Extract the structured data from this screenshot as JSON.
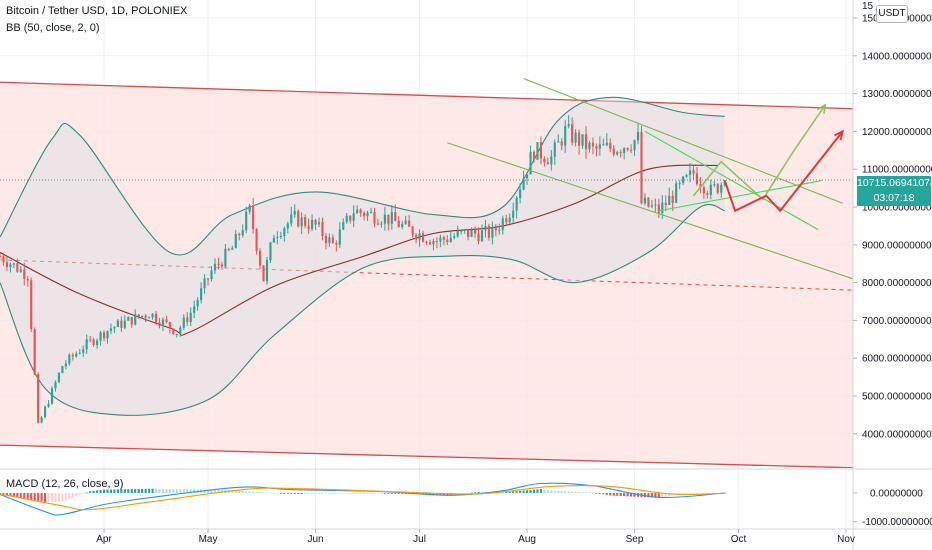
{
  "header": {
    "title": "Bitcoin / Tether USD, 1D, POLONIEX",
    "indicator": "BB (50, close, 2, 0)",
    "currency": "USDT"
  },
  "price_axis": {
    "ticks": [
      "15000.00000000",
      "14000.00000000",
      "13000.00000000",
      "12000.00000000",
      "11000.00000000",
      "10000.00000000",
      "9000.00000000",
      "8000.00000000",
      "7000.00000000",
      "6000.00000000",
      "5000.00000000",
      "4000.00000000"
    ],
    "top_partial": "15",
    "last_price": "10715.06941074",
    "countdown": "03:07:18"
  },
  "macd": {
    "label": "MACD (12, 26, close, 9)",
    "ticks": [
      "0.00000000",
      "-1000.00000000"
    ]
  },
  "time_axis": [
    "Apr",
    "May",
    "Jun",
    "Jul",
    "Aug",
    "Sep",
    "Oct",
    "Nov"
  ],
  "colors": {
    "bull": "#26a69a",
    "bear": "#ef5350",
    "channel_fill": "#fde2e2",
    "channel_line": "#e04848",
    "bb_band": "#2e8b80",
    "bb_basis": "#8b2c2c",
    "trend_green": "#7ab648",
    "forecast_red": "#e53935",
    "last_tag": "#26a69a"
  },
  "chart_data": {
    "type": "candlestick",
    "symbol": "Bitcoin / Tether USD",
    "timeframe": "1D",
    "exchange": "POLONIEX",
    "x_range": [
      "2019-03-02",
      "2019-11-03"
    ],
    "ylim": [
      3100,
      15500
    ],
    "last_close": 10715.07,
    "price_path": [
      {
        "date": "2019-03-02",
        "close": 8700
      },
      {
        "date": "2019-03-10",
        "close": 8200
      },
      {
        "date": "2019-03-13",
        "close": 4200
      },
      {
        "date": "2019-03-20",
        "close": 5800
      },
      {
        "date": "2019-03-26",
        "close": 6300
      },
      {
        "date": "2019-04-03",
        "close": 6800
      },
      {
        "date": "2019-04-14",
        "close": 7200
      },
      {
        "date": "2019-04-22",
        "close": 6700
      },
      {
        "date": "2019-04-26",
        "close": 7200
      },
      {
        "date": "2019-05-02",
        "close": 8300
      },
      {
        "date": "2019-05-08",
        "close": 8900
      },
      {
        "date": "2019-05-13",
        "close": 9900
      },
      {
        "date": "2019-05-17",
        "close": 8100
      },
      {
        "date": "2019-05-20",
        "close": 9300
      },
      {
        "date": "2019-05-26",
        "close": 9700
      },
      {
        "date": "2019-06-01",
        "close": 9500
      },
      {
        "date": "2019-06-06",
        "close": 9000
      },
      {
        "date": "2019-06-12",
        "close": 9900
      },
      {
        "date": "2019-06-22",
        "close": 9700
      },
      {
        "date": "2019-06-28",
        "close": 9400
      },
      {
        "date": "2019-07-06",
        "close": 9100
      },
      {
        "date": "2019-07-14",
        "close": 9300
      },
      {
        "date": "2019-07-22",
        "close": 9300
      },
      {
        "date": "2019-07-27",
        "close": 9900
      },
      {
        "date": "2019-08-03",
        "close": 11500
      },
      {
        "date": "2019-08-08",
        "close": 11300
      },
      {
        "date": "2019-08-12",
        "close": 12000
      },
      {
        "date": "2019-08-20",
        "close": 11500
      },
      {
        "date": "2019-08-28",
        "close": 11600
      },
      {
        "date": "2019-09-02",
        "close": 11800
      },
      {
        "date": "2019-09-03",
        "close": 10100
      },
      {
        "date": "2019-09-08",
        "close": 9900
      },
      {
        "date": "2019-09-14",
        "close": 10500
      },
      {
        "date": "2019-09-18",
        "close": 10900
      },
      {
        "date": "2019-09-23",
        "close": 10400
      },
      {
        "date": "2019-09-27",
        "close": 10715
      }
    ],
    "bollinger_bands": {
      "basis": [
        {
          "date": "2019-03-02",
          "v": 8800
        },
        {
          "date": "2019-03-25",
          "v": 7700
        },
        {
          "date": "2019-04-20",
          "v": 6800
        },
        {
          "date": "2019-04-26",
          "v": 6700
        },
        {
          "date": "2019-05-20",
          "v": 7900
        },
        {
          "date": "2019-06-15",
          "v": 8700
        },
        {
          "date": "2019-07-05",
          "v": 9300
        },
        {
          "date": "2019-07-25",
          "v": 9500
        },
        {
          "date": "2019-08-15",
          "v": 10100
        },
        {
          "date": "2019-09-05",
          "v": 11000
        },
        {
          "date": "2019-09-25",
          "v": 11100
        }
      ],
      "upper": [
        {
          "date": "2019-03-02",
          "v": 9200
        },
        {
          "date": "2019-03-17",
          "v": 11800
        },
        {
          "date": "2019-03-25",
          "v": 11900
        },
        {
          "date": "2019-04-20",
          "v": 8800
        },
        {
          "date": "2019-05-08",
          "v": 9800
        },
        {
          "date": "2019-06-01",
          "v": 10400
        },
        {
          "date": "2019-07-05",
          "v": 9800
        },
        {
          "date": "2019-07-25",
          "v": 10000
        },
        {
          "date": "2019-08-10",
          "v": 12300
        },
        {
          "date": "2019-08-25",
          "v": 12900
        },
        {
          "date": "2019-09-15",
          "v": 12500
        },
        {
          "date": "2019-09-27",
          "v": 12400
        }
      ],
      "lower": [
        {
          "date": "2019-03-02",
          "v": 8000
        },
        {
          "date": "2019-03-15",
          "v": 5200
        },
        {
          "date": "2019-04-05",
          "v": 4500
        },
        {
          "date": "2019-05-01",
          "v": 4900
        },
        {
          "date": "2019-05-20",
          "v": 6600
        },
        {
          "date": "2019-06-15",
          "v": 8400
        },
        {
          "date": "2019-07-10",
          "v": 8700
        },
        {
          "date": "2019-07-28",
          "v": 8600
        },
        {
          "date": "2019-08-15",
          "v": 8000
        },
        {
          "date": "2019-09-05",
          "v": 8800
        },
        {
          "date": "2019-09-20",
          "v": 10000
        },
        {
          "date": "2019-09-27",
          "v": 9900
        }
      ]
    },
    "annotations": {
      "channel_top": [
        {
          "date": "2019-03-02",
          "v": 13300
        },
        {
          "date": "2019-11-03",
          "v": 12600
        }
      ],
      "channel_bottom": [
        {
          "date": "2019-03-02",
          "v": 3700
        },
        {
          "date": "2019-11-03",
          "v": 3100
        }
      ],
      "channel_mid_dashed": [
        {
          "date": "2019-03-02",
          "v": 8600
        },
        {
          "date": "2019-11-03",
          "v": 7800
        }
      ],
      "green_trend_upper": [
        {
          "date": "2019-07-31",
          "v": 13400
        },
        {
          "date": "2019-10-31",
          "v": 10100
        }
      ],
      "green_trend_lower": [
        {
          "date": "2019-07-09",
          "v": 11700
        },
        {
          "date": "2019-11-03",
          "v": 8100
        }
      ],
      "green_triangle_a": [
        {
          "date": "2019-09-04",
          "v": 12000
        },
        {
          "date": "2019-10-24",
          "v": 9400
        }
      ],
      "green_triangle_b": [
        {
          "date": "2019-09-08",
          "v": 9900
        },
        {
          "date": "2019-10-25",
          "v": 10700
        }
      ],
      "green_forecast": [
        {
          "date": "2019-09-18",
          "v": 10300
        },
        {
          "date": "2019-09-26",
          "v": 11200
        },
        {
          "date": "2019-10-08",
          "v": 10200
        },
        {
          "date": "2019-10-17",
          "v": 11500
        },
        {
          "date": "2019-10-26",
          "v": 12700
        }
      ],
      "red_forecast": [
        {
          "date": "2019-09-27",
          "v": 10700
        },
        {
          "date": "2019-09-30",
          "v": 9900
        },
        {
          "date": "2019-10-09",
          "v": 10300
        },
        {
          "date": "2019-10-13",
          "v": 9900
        },
        {
          "date": "2019-10-31",
          "v": 12000
        }
      ]
    }
  },
  "macd_data": {
    "ylim": [
      -1300,
      700
    ],
    "macd_line": [
      {
        "date": "2019-03-02",
        "v": -50
      },
      {
        "date": "2019-03-15",
        "v": -650
      },
      {
        "date": "2019-03-20",
        "v": -750
      },
      {
        "date": "2019-04-01",
        "v": -400
      },
      {
        "date": "2019-04-15",
        "v": -150
      },
      {
        "date": "2019-05-10",
        "v": 200
      },
      {
        "date": "2019-05-25",
        "v": 120
      },
      {
        "date": "2019-06-20",
        "v": 50
      },
      {
        "date": "2019-07-10",
        "v": -80
      },
      {
        "date": "2019-07-25",
        "v": 80
      },
      {
        "date": "2019-08-05",
        "v": 330
      },
      {
        "date": "2019-08-20",
        "v": 250
      },
      {
        "date": "2019-09-08",
        "v": -150
      },
      {
        "date": "2019-09-27",
        "v": 0
      }
    ],
    "signal_line": [
      {
        "date": "2019-03-02",
        "v": -30
      },
      {
        "date": "2019-03-20",
        "v": -450
      },
      {
        "date": "2019-03-28",
        "v": -580
      },
      {
        "date": "2019-04-15",
        "v": -300
      },
      {
        "date": "2019-05-12",
        "v": 130
      },
      {
        "date": "2019-05-28",
        "v": 150
      },
      {
        "date": "2019-06-25",
        "v": 40
      },
      {
        "date": "2019-07-18",
        "v": -30
      },
      {
        "date": "2019-08-08",
        "v": 230
      },
      {
        "date": "2019-08-25",
        "v": 230
      },
      {
        "date": "2019-09-12",
        "v": -40
      },
      {
        "date": "2019-09-27",
        "v": -10
      }
    ]
  }
}
